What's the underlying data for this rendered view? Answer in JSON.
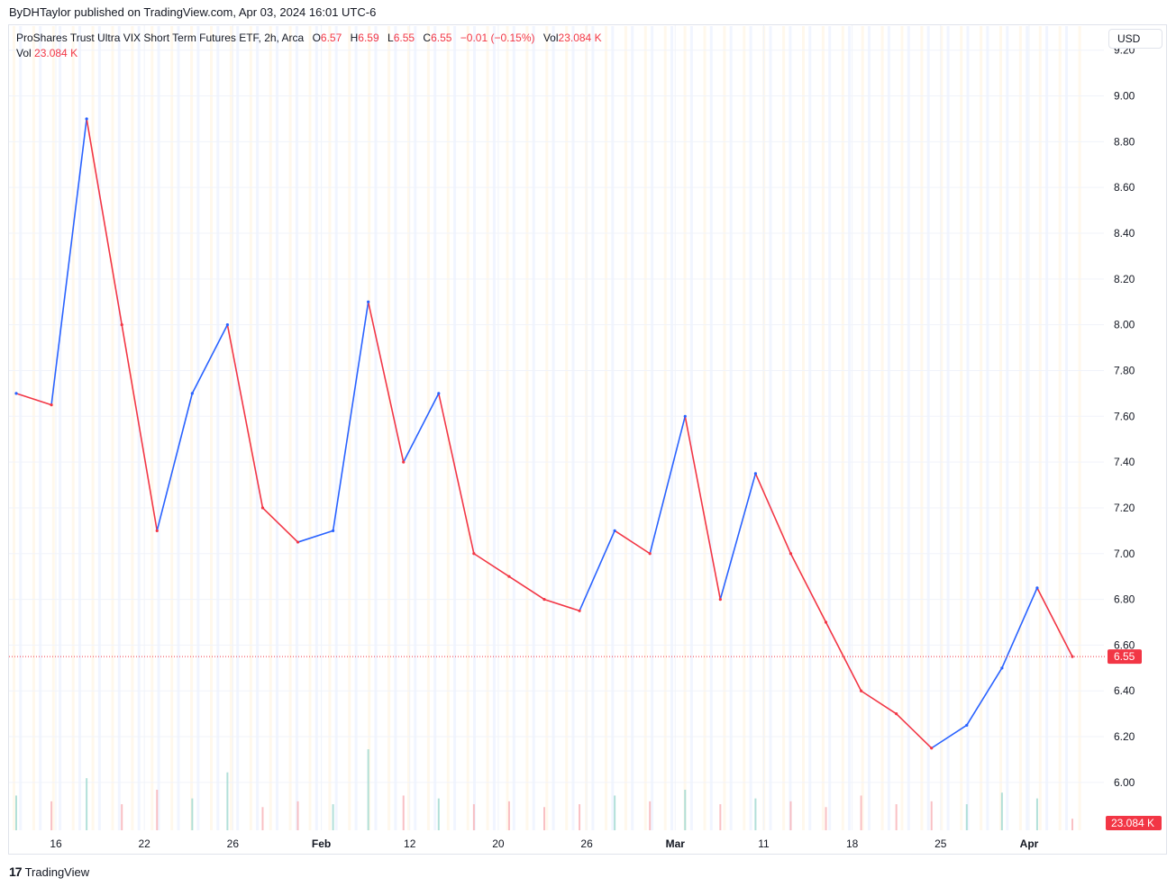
{
  "published": "ByDHTaylor published on TradingView.com, Apr 03, 2024 16:01 UTC-6",
  "legend": {
    "title": "ProShares Trust Ultra VIX Short Term Futures ETF, 2h, Arca",
    "o_label": "O",
    "o_value": "6.57",
    "h_label": "H",
    "h_value": "6.59",
    "l_label": "L",
    "l_value": "6.55",
    "c_label": "C",
    "c_value": "6.55",
    "change": "−0.01 (−0.15%)",
    "vol_label": "Vol",
    "vol_value": "23.084 K"
  },
  "legend2": {
    "label": "Vol",
    "value": "23.084 K"
  },
  "currency": "USD",
  "footer": {
    "brand": "TradingView"
  },
  "colors": {
    "up": "#2962ff",
    "down": "#f23645",
    "grid": "#f0f3fa",
    "text": "#131722",
    "axis_text": "#131722"
  },
  "chart_data": {
    "type": "line",
    "series": [
      {
        "name": "",
        "x": [
          "Jan 11",
          "Jan 16",
          "Jan 18",
          "Jan 22",
          "Jan 24",
          "Jan 26",
          "Feb 1",
          "Feb 5",
          "Feb 8",
          "Feb 12",
          "Feb 14",
          "Feb 16",
          "Feb 20",
          "Feb 22",
          "Feb 26",
          "Feb 28",
          "Mar 1",
          "Mar 5",
          "Mar 7",
          "Mar 11",
          "Mar 13",
          "Mar 15",
          "Mar 18",
          "Mar 20",
          "Mar 22",
          "Mar 25",
          "Mar 27",
          "Mar 29",
          "Apr 1",
          "Apr 2",
          "Apr 3"
        ],
        "y": [
          7.7,
          7.65,
          8.9,
          8.0,
          7.1,
          7.7,
          8.0,
          7.2,
          7.05,
          7.1,
          8.1,
          7.4,
          7.7,
          7.0,
          6.9,
          6.8,
          6.75,
          7.1,
          7.0,
          7.6,
          6.8,
          7.35,
          7.0,
          6.7,
          6.4,
          6.3,
          6.15,
          6.25,
          6.5,
          6.85,
          6.55
        ]
      }
    ],
    "volume": [
      12,
      10,
      18,
      9,
      14,
      11,
      20,
      8,
      10,
      9,
      28,
      12,
      11,
      9,
      10,
      8,
      9,
      12,
      10,
      14,
      9,
      11,
      10,
      8,
      12,
      9,
      10,
      9,
      13,
      11,
      4
    ],
    "y_ticks": [
      "9.20",
      "9.00",
      "8.80",
      "8.60",
      "8.40",
      "8.20",
      "8.00",
      "7.80",
      "7.60",
      "7.40",
      "7.20",
      "7.00",
      "6.80",
      "6.60",
      "6.40",
      "6.20",
      "6.00"
    ],
    "x_ticks": [
      "16",
      "22",
      "26",
      "Feb",
      "12",
      "20",
      "26",
      "Mar",
      "11",
      "18",
      "25",
      "Apr"
    ],
    "ylim": [
      5.85,
      9.25
    ],
    "last_price": "6.55",
    "last_volume": "23.084 K",
    "grid": true
  }
}
